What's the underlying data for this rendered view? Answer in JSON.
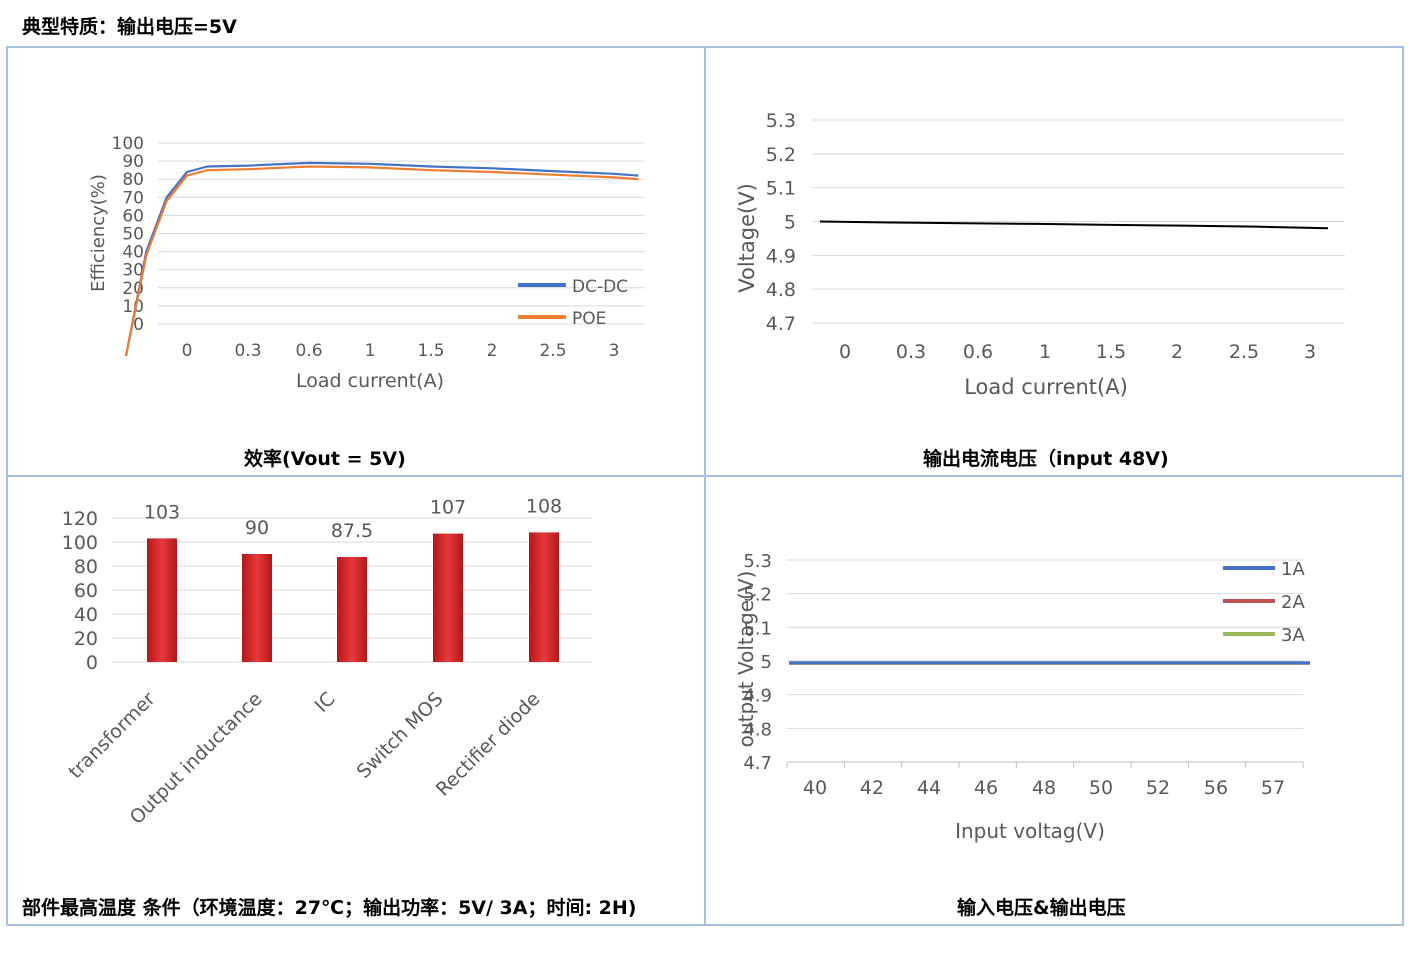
{
  "page": {
    "title": "典型特质：输出电压=5V"
  },
  "captions": {
    "efficiency": "效率(Vout = 5V)",
    "voltage_current": "输出电流电压（input 48V)",
    "temperature": "部件最高温度 条件（环境温度：27℃；输出功率：5V/ 3A；时间: 2H)",
    "input_output": "输入电压&输出电压"
  },
  "chart_data": [
    {
      "type": "line",
      "title": "",
      "xlabel": "Load current(A)",
      "ylabel": "Efficiency(%)",
      "x_ticks": [
        "0",
        "0.3",
        "0.6",
        "1",
        "1.5",
        "2",
        "2.5",
        "3"
      ],
      "y_ticks": [
        "100",
        "90",
        "80",
        "70",
        "60",
        "50",
        "40",
        "30",
        "20",
        "10",
        "0"
      ],
      "ylim": [
        0,
        100
      ],
      "legend_position": "bottom-right",
      "grid": true,
      "series": [
        {
          "name": "DC-DC",
          "color": "#4472c4",
          "points": [
            [
              -0.3,
              0
            ],
            [
              -0.2,
              40
            ],
            [
              -0.1,
              70
            ],
            [
              0,
              84
            ],
            [
              0.1,
              87
            ],
            [
              0.3,
              87.5
            ],
            [
              0.6,
              89
            ],
            [
              1,
              88.5
            ],
            [
              1.5,
              87
            ],
            [
              2,
              86
            ],
            [
              2.5,
              84.5
            ],
            [
              3,
              83
            ],
            [
              3.2,
              82
            ]
          ]
        },
        {
          "name": "POE",
          "color": "#ed7d31",
          "points": [
            [
              -0.3,
              0
            ],
            [
              -0.2,
              38
            ],
            [
              -0.1,
              68
            ],
            [
              0,
              82
            ],
            [
              0.1,
              85
            ],
            [
              0.3,
              85.5
            ],
            [
              0.6,
              87
            ],
            [
              1,
              86.5
            ],
            [
              1.5,
              85
            ],
            [
              2,
              84
            ],
            [
              2.5,
              82.5
            ],
            [
              3,
              81
            ],
            [
              3.2,
              80
            ]
          ]
        }
      ]
    },
    {
      "type": "line",
      "title": "",
      "xlabel": "Load current(A)",
      "ylabel": "Voltage(V)",
      "x_ticks": [
        "0",
        "0.3",
        "0.6",
        "1",
        "1.5",
        "2",
        "2.5",
        "3"
      ],
      "y_ticks": [
        "5.3",
        "5.2",
        "5.1",
        "5",
        "4.9",
        "4.8",
        "4.7"
      ],
      "ylim": [
        4.7,
        5.3
      ],
      "grid": true,
      "series": [
        {
          "name": "",
          "color": "#000000",
          "points": [
            [
              0,
              5.0
            ],
            [
              0.3,
              4.997
            ],
            [
              0.6,
              4.995
            ],
            [
              1,
              4.993
            ],
            [
              1.5,
              4.99
            ],
            [
              2,
              4.988
            ],
            [
              2.5,
              4.985
            ],
            [
              3,
              4.98
            ]
          ]
        }
      ]
    },
    {
      "type": "bar",
      "title": "",
      "categories": [
        "transformer",
        "Output inductance",
        "IC",
        "Switch MOS",
        "Rectifier diode"
      ],
      "values": [
        103,
        90,
        87.5,
        107,
        108
      ],
      "value_labels": [
        "103",
        "90",
        "87.5",
        "107",
        "108"
      ],
      "y_ticks": [
        "120",
        "100",
        "80",
        "60",
        "40",
        "20",
        "0"
      ],
      "ylim": [
        0,
        120
      ],
      "bar_color": "#e8393b",
      "grid": true
    },
    {
      "type": "line",
      "title": "",
      "xlabel": "Input voltag(V)",
      "ylabel": "output Voltage(V)",
      "x_ticks": [
        "40",
        "42",
        "44",
        "46",
        "48",
        "50",
        "52",
        "56",
        "57"
      ],
      "y_ticks": [
        "5.3",
        "5.2",
        "5.1",
        "5",
        "4.9",
        "4.8",
        "4.7"
      ],
      "ylim": [
        4.7,
        5.3
      ],
      "legend_position": "top-right",
      "grid": true,
      "series": [
        {
          "name": "1A",
          "color": "#4472c4",
          "values": [
            4.995,
            4.995,
            4.995,
            4.995,
            4.995,
            4.995,
            4.995,
            4.995,
            4.995
          ]
        },
        {
          "name": "2A",
          "color": "#c0504d",
          "values": [
            4.994,
            4.994,
            4.994,
            4.994,
            4.994,
            4.994,
            4.994,
            4.994,
            4.994
          ]
        },
        {
          "name": "3A",
          "color": "#9bbb59",
          "values": [
            4.993,
            4.993,
            4.993,
            4.993,
            4.993,
            4.993,
            4.993,
            4.993,
            4.993
          ]
        }
      ]
    }
  ]
}
